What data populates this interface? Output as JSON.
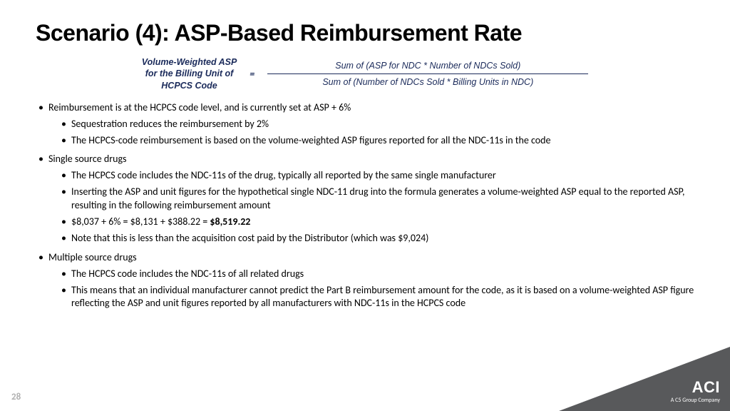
{
  "title": "Scenario (4): ASP-Based Reimbursement Rate",
  "formula": {
    "left_l1": "Volume-Weighted ASP",
    "left_l2": "for the Billing Unit of",
    "left_l3": "HCPCS Code",
    "eq": "=",
    "numerator": "Sum of  (ASP for NDC  *  Number of NDCs Sold)",
    "denominator": "Sum of (Number of NDCs Sold  *  Billing Units in NDC)",
    "label_color": "#1a2a5a",
    "label_fontsize": 12.5,
    "frac_line_width": 450
  },
  "bullets": [
    {
      "text": "Reimbursement is at the HCPCS code level, and is currently set at ASP + 6%",
      "sub": [
        "Sequestration reduces the reimbursement by 2%",
        "The HCPCS-code reimbursement is based on the volume-weighted ASP figures reported for all the NDC-11s in the code"
      ]
    },
    {
      "text": "Single source drugs",
      "sub": [
        "The HCPCS code includes the NDC-11s of the drug, typically all reported by the same single manufacturer",
        " Inserting the ASP and unit figures for the hypothetical single NDC-11 drug into the formula generates a volume-weighted ASP equal to the reported ASP, resulting in the following reimbursement amount",
        {
          "pre": "$8,037 + 6% = $8,131 + $388.22 = ",
          "bold": "$8,519.22"
        },
        "Note that this is less than the acquisition cost paid by the Distributor (which was $9,024)"
      ]
    },
    {
      "text": "Multiple source drugs",
      "sub": [
        "The HCPCS code includes the NDC-11s of all related drugs",
        "This means that an individual manufacturer cannot predict the Part B reimbursement amount for the code, as it is based on a volume-weighted ASP figure reflecting the ASP and unit figures reported by all manufacturers with NDC-11s in the HCPCS code"
      ]
    }
  ],
  "page_number": "28",
  "logo": {
    "main": "ACI",
    "sub": "A C5 Group Company"
  },
  "colors": {
    "background": "#ffffff",
    "text": "#000000",
    "formula": "#1a2a5a",
    "pagenum": "#b0b0b0",
    "triangle": "#58595b",
    "logo_text": "#ffffff"
  },
  "typography": {
    "title_size": 32,
    "body_size": 14
  }
}
